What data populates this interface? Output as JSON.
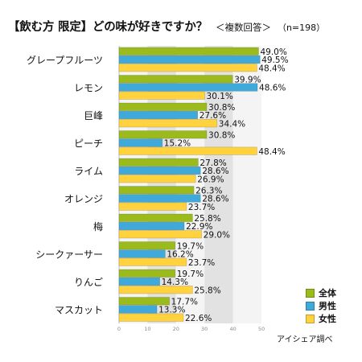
{
  "chart_data": {
    "type": "bar",
    "title": "【飲む方 限定】どの味が好きですか？",
    "subtitle": "＜複数回答＞",
    "sample_note": "（n=198）",
    "categories": [
      "グレープフルーツ",
      "レモン",
      "巨峰",
      "ピーチ",
      "ライム",
      "オレンジ",
      "梅",
      "シークァーサー",
      "りんご",
      "マスカット"
    ],
    "series": [
      {
        "name": "全体",
        "color": "#9bbb1d",
        "values": [
          49.0,
          39.9,
          30.8,
          30.8,
          27.8,
          26.3,
          25.8,
          19.7,
          19.7,
          17.7
        ]
      },
      {
        "name": "男性",
        "color": "#3fa9d9",
        "values": [
          49.5,
          48.6,
          27.6,
          15.2,
          28.6,
          28.6,
          22.9,
          16.2,
          14.3,
          13.3
        ]
      },
      {
        "name": "女性",
        "color": "#ffd23e",
        "values": [
          48.4,
          30.1,
          34.4,
          48.4,
          26.9,
          23.7,
          29.0,
          23.7,
          25.8,
          22.6
        ]
      }
    ],
    "xlim": [
      0,
      50
    ],
    "xticks": [
      "0",
      "10",
      "20",
      "30",
      "40",
      "50"
    ],
    "value_suffix": "%",
    "grid": "vertical bands",
    "legend_position": "bottom-right",
    "source": "アイシェア調べ"
  }
}
